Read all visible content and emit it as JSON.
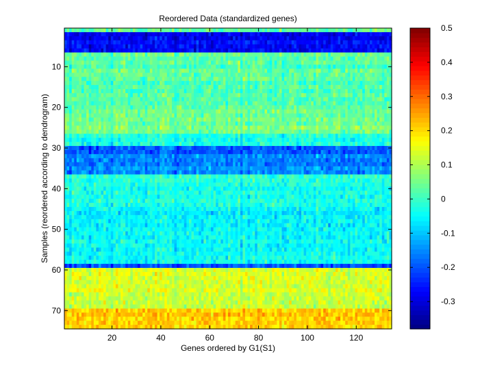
{
  "chart_data": {
    "type": "heatmap",
    "title": "Reordered Data (standardized genes)",
    "xlabel": "Genes ordered by G1(S1)",
    "ylabel": "Samples (reordered according to dendrogram)",
    "n_cols": 134,
    "n_rows": 74,
    "xlim": [
      0.5,
      134.5
    ],
    "ylim": [
      0.5,
      74.5
    ],
    "y_reversed": true,
    "xticks": [
      20,
      40,
      60,
      80,
      100,
      120
    ],
    "yticks": [
      10,
      20,
      30,
      40,
      50,
      60,
      70
    ],
    "colormap": "jet",
    "clim": [
      -0.38,
      0.5
    ],
    "colorbar_ticks": [
      0.5,
      0.4,
      0.3,
      0.2,
      0.1,
      0,
      -0.1,
      -0.2,
      -0.3
    ],
    "row_profile": [
      {
        "rows": [
          1,
          1
        ],
        "mean": 0.03
      },
      {
        "rows": [
          2,
          6
        ],
        "mean": -0.27
      },
      {
        "rows": [
          7,
          9
        ],
        "mean": 0.03
      },
      {
        "rows": [
          10,
          20
        ],
        "mean": 0.02
      },
      {
        "rows": [
          21,
          26
        ],
        "mean": 0.05
      },
      {
        "rows": [
          27,
          29
        ],
        "mean": -0.02
      },
      {
        "rows": [
          30,
          31
        ],
        "mean": -0.2
      },
      {
        "rows": [
          32,
          36
        ],
        "mean": -0.15
      },
      {
        "rows": [
          37,
          44
        ],
        "mean": -0.03
      },
      {
        "rows": [
          45,
          58
        ],
        "mean": -0.05
      },
      {
        "rows": [
          59,
          59
        ],
        "mean": -0.19
      },
      {
        "rows": [
          60,
          66
        ],
        "mean": 0.14
      },
      {
        "rows": [
          67,
          69
        ],
        "mean": 0.12
      },
      {
        "rows": [
          70,
          74
        ],
        "mean": 0.21
      }
    ],
    "random_seed": 7
  }
}
